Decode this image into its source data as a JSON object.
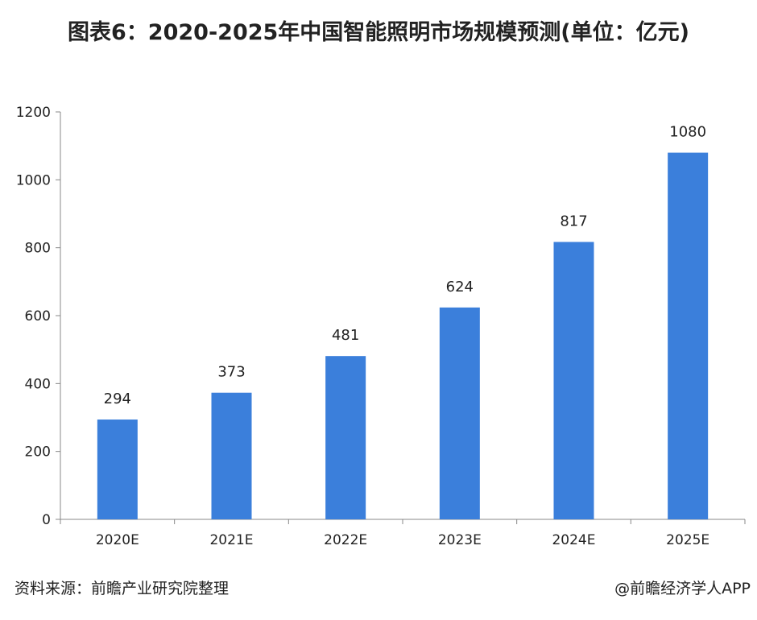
{
  "title": "图表6：2020-2025年中国智能照明市场规模预测(单位：亿元)",
  "source_note": "资料来源：前瞻产业研究院整理",
  "credit": "@前瞻经济学人APP",
  "colors": {
    "bar": "#3b7fdb",
    "axis": "#888888",
    "text": "#222222"
  },
  "chart_data": {
    "type": "bar",
    "categories": [
      "2020E",
      "2021E",
      "2022E",
      "2023E",
      "2024E",
      "2025E"
    ],
    "values": [
      294,
      373,
      481,
      624,
      817,
      1080
    ],
    "yticks": [
      0,
      200,
      400,
      600,
      800,
      1000,
      1200
    ],
    "ylim": [
      0,
      1200
    ],
    "grid": false,
    "legend": "none"
  }
}
